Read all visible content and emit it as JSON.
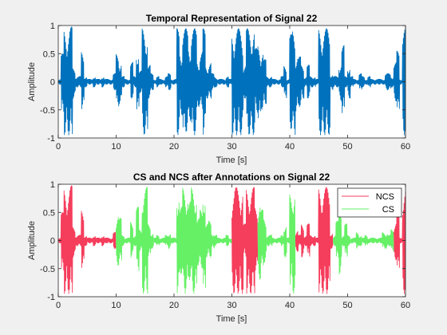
{
  "figure": {
    "background": "#f0f0f0"
  },
  "chart_data": [
    {
      "type": "line",
      "title": "Temporal Representation of Signal 22",
      "xlabel": "Time [s]",
      "ylabel": "Amplitude",
      "xlim": [
        0,
        60
      ],
      "ylim": [
        -1,
        1
      ],
      "xticks": [
        0,
        10,
        20,
        30,
        40,
        50,
        60
      ],
      "xtick_labels": [
        "0",
        "10",
        "20",
        "30",
        "40",
        "50",
        "60"
      ],
      "yticks": [
        -1,
        -0.5,
        0,
        0.5,
        1
      ],
      "ytick_labels": [
        "-1",
        "-0.5",
        "0",
        "0.5",
        "1"
      ],
      "grid": false,
      "series": [
        {
          "color": "#0072bd",
          "segments": [
            {
              "x": [
                0.0,
                0.5,
                1.0,
                1.5,
                2.0,
                2.5,
                3.0,
                3.5,
                4.0,
                4.5,
                5.0,
                5.5,
                6.0,
                6.5,
                7.0,
                7.5,
                8.0,
                8.5,
                9.0,
                9.5,
                10.0,
                10.5,
                11.0,
                11.5,
                12.0,
                12.5,
                13.0,
                13.5,
                14.0,
                14.5,
                15.0,
                15.5,
                16.0,
                16.5,
                17.0,
                17.5,
                18.0,
                18.5,
                19.0,
                19.5,
                20.0,
                20.5,
                21.0,
                21.5,
                22.0,
                22.5,
                23.0,
                23.5,
                24.0,
                24.5,
                25.0,
                25.5,
                26.0,
                26.5,
                27.0,
                27.5,
                28.0,
                28.5,
                29.0,
                29.5,
                30.0,
                30.5,
                31.0,
                31.5,
                32.0,
                32.5,
                33.0,
                33.5,
                34.0,
                34.5,
                35.0,
                35.5,
                36.0,
                36.5,
                37.0,
                37.5,
                38.0,
                38.5,
                39.0,
                39.5,
                40.0,
                40.5,
                41.0,
                41.5,
                42.0,
                42.5,
                43.0,
                43.5,
                44.0,
                44.5,
                45.0,
                45.5,
                46.0,
                46.5,
                47.0,
                47.5,
                48.0,
                48.5,
                49.0,
                49.5,
                50.0,
                50.5,
                51.0,
                51.5,
                52.0,
                52.5,
                53.0,
                53.5,
                54.0,
                54.5,
                55.0,
                55.5,
                56.0,
                56.5,
                57.0,
                57.5,
                58.0,
                58.5,
                59.0,
                59.5,
                60.0
              ],
              "max": [
                0.05,
                0.5,
                0.95,
                0.95,
                0.98,
                0.25,
                0.1,
                0.1,
                0.55,
                0.1,
                0.05,
                0.05,
                0.1,
                0.05,
                0.05,
                0.1,
                0.05,
                0.05,
                0.05,
                0.15,
                0.5,
                0.4,
                0.1,
                0.05,
                0.05,
                0.35,
                0.1,
                0.6,
                0.2,
                0.95,
                0.95,
                0.3,
                0.15,
                0.05,
                0.1,
                0.05,
                0.05,
                0.1,
                0.15,
                0.05,
                0.05,
                0.95,
                0.6,
                0.95,
                0.95,
                0.7,
                0.95,
                0.95,
                0.4,
                0.55,
                0.95,
                0.3,
                0.35,
                0.15,
                0.1,
                0.05,
                0.05,
                0.05,
                0.1,
                0.05,
                0.9,
                0.95,
                0.95,
                0.95,
                0.3,
                0.95,
                0.95,
                0.95,
                0.6,
                0.7,
                0.55,
                0.4,
                0.1,
                0.1,
                0.05,
                0.05,
                0.05,
                0.1,
                0.3,
                0.05,
                0.85,
                0.95,
                0.5,
                0.45,
                0.3,
                0.1,
                0.3,
                0.1,
                0.1,
                0.05,
                0.95,
                0.95,
                0.95,
                0.95,
                0.15,
                0.1,
                0.1,
                0.35,
                0.65,
                0.1,
                0.3,
                0.1,
                0.05,
                0.05,
                0.15,
                0.1,
                0.05,
                0.1,
                0.05,
                0.05,
                0.05,
                0.05,
                0.05,
                0.15,
                0.15,
                0.1,
                0.35,
                0.55,
                0.05,
                0.95,
                0.95
              ],
              "min": [
                -0.05,
                -0.6,
                -0.95,
                -0.95,
                -0.98,
                -0.3,
                -0.1,
                -0.1,
                -0.5,
                -0.1,
                -0.05,
                -0.05,
                -0.1,
                -0.05,
                -0.05,
                -0.1,
                -0.05,
                -0.05,
                -0.05,
                -0.15,
                -0.45,
                -0.4,
                -0.1,
                -0.05,
                -0.05,
                -0.3,
                -0.1,
                -0.55,
                -0.2,
                -0.95,
                -0.95,
                -0.3,
                -0.15,
                -0.05,
                -0.1,
                -0.05,
                -0.05,
                -0.1,
                -0.15,
                -0.05,
                -0.05,
                -0.95,
                -0.6,
                -0.95,
                -0.9,
                -0.7,
                -0.95,
                -0.95,
                -0.45,
                -0.5,
                -0.95,
                -0.3,
                -0.3,
                -0.15,
                -0.1,
                -0.05,
                -0.05,
                -0.05,
                -0.1,
                -0.05,
                -0.95,
                -0.95,
                -0.95,
                -0.95,
                -0.3,
                -0.95,
                -0.95,
                -0.95,
                -0.55,
                -0.7,
                -0.5,
                -0.4,
                -0.1,
                -0.1,
                -0.05,
                -0.05,
                -0.05,
                -0.1,
                -0.3,
                -0.05,
                -0.85,
                -0.95,
                -0.55,
                -0.45,
                -0.3,
                -0.1,
                -0.3,
                -0.1,
                -0.1,
                -0.05,
                -0.95,
                -0.95,
                -0.95,
                -0.95,
                -0.15,
                -0.1,
                -0.1,
                -0.35,
                -0.6,
                -0.1,
                -0.3,
                -0.1,
                -0.05,
                -0.05,
                -0.15,
                -0.1,
                -0.05,
                -0.1,
                -0.05,
                -0.05,
                -0.05,
                -0.05,
                -0.05,
                -0.15,
                -0.15,
                -0.1,
                -0.35,
                -0.55,
                -0.05,
                -0.95,
                -0.95
              ]
            }
          ]
        }
      ]
    },
    {
      "type": "line",
      "title": "CS and NCS after Annotations on Signal 22",
      "xlabel": "Time [s]",
      "ylabel": "Amplitude",
      "xlim": [
        0,
        60
      ],
      "ylim": [
        -1,
        1
      ],
      "xticks": [
        0,
        10,
        20,
        30,
        40,
        50,
        60
      ],
      "xtick_labels": [
        "0",
        "10",
        "20",
        "30",
        "40",
        "50",
        "60"
      ],
      "yticks": [
        -1,
        -0.5,
        0,
        0.5,
        1
      ],
      "ytick_labels": [
        "-1",
        "-0.5",
        "0",
        "0.5",
        "1"
      ],
      "grid": false,
      "legend": "top-right",
      "series": [
        {
          "name": "NCS",
          "color": "#f53d5c",
          "segments": [
            {
              "x": [
                0.0,
                0.5,
                1.0,
                1.5,
                2.0,
                2.5,
                3.0,
                3.5,
                4.0,
                4.5,
                5.0,
                5.5,
                6.0,
                6.5,
                7.0,
                7.5,
                8.0,
                8.5,
                9.0,
                9.5
              ],
              "max": [
                0.05,
                0.5,
                0.95,
                0.95,
                0.98,
                0.25,
                0.1,
                0.1,
                0.55,
                0.1,
                0.05,
                0.05,
                0.1,
                0.05,
                0.05,
                0.1,
                0.05,
                0.05,
                0.05,
                0.15
              ],
              "min": [
                -0.05,
                -0.6,
                -0.95,
                -0.95,
                -0.98,
                -0.3,
                -0.1,
                -0.1,
                -0.5,
                -0.1,
                -0.05,
                -0.05,
                -0.1,
                -0.05,
                -0.05,
                -0.1,
                -0.05,
                -0.05,
                -0.05,
                -0.15
              ]
            },
            {
              "x": [
                30.0,
                30.5,
                31.0,
                31.5,
                32.0,
                32.5,
                33.0,
                33.5,
                34.0
              ],
              "max": [
                0.9,
                0.95,
                0.95,
                0.95,
                0.3,
                0.95,
                0.95,
                0.95,
                0.6
              ],
              "min": [
                -0.95,
                -0.95,
                -0.95,
                -0.95,
                -0.3,
                -0.95,
                -0.95,
                -0.95,
                -0.55
              ]
            },
            {
              "x": [
                41.0,
                41.5,
                42.0,
                42.5,
                43.0,
                43.5,
                44.0,
                44.5,
                45.0,
                45.5,
                46.0,
                46.5,
                47.0
              ],
              "max": [
                0.2,
                0.1,
                0.3,
                0.1,
                0.3,
                0.1,
                0.1,
                0.05,
                0.95,
                0.95,
                0.95,
                0.95,
                0.15
              ],
              "min": [
                -0.2,
                -0.1,
                -0.3,
                -0.1,
                -0.3,
                -0.1,
                -0.1,
                -0.05,
                -0.95,
                -0.95,
                -0.95,
                -0.95,
                -0.15
              ]
            },
            {
              "x": [
                58.0,
                58.5,
                59.0,
                59.5,
                60.0
              ],
              "max": [
                0.35,
                0.55,
                0.05,
                0.95,
                0.95
              ],
              "min": [
                -0.35,
                -0.55,
                -0.05,
                -0.95,
                -0.95
              ]
            }
          ]
        },
        {
          "name": "CS",
          "color": "#66f066",
          "segments": [
            {
              "x": [
                10.0,
                10.5,
                11.0,
                11.5,
                12.0,
                12.5,
                13.0,
                13.5,
                14.0,
                14.5,
                15.0,
                15.5,
                16.0,
                16.5,
                17.0,
                17.5,
                18.0,
                18.5,
                19.0,
                19.5,
                20.0,
                20.5,
                21.0,
                21.5,
                22.0,
                22.5,
                23.0,
                23.5,
                24.0,
                24.5,
                25.0,
                25.5,
                26.0,
                26.5,
                27.0,
                27.5,
                28.0,
                28.5,
                29.0,
                29.5
              ],
              "max": [
                0.5,
                0.4,
                0.1,
                0.05,
                0.05,
                0.35,
                0.1,
                0.6,
                0.2,
                0.95,
                0.95,
                0.3,
                0.15,
                0.05,
                0.1,
                0.05,
                0.05,
                0.1,
                0.15,
                0.05,
                0.05,
                0.95,
                0.6,
                0.95,
                0.95,
                0.7,
                0.95,
                0.95,
                0.4,
                0.55,
                0.95,
                0.3,
                0.35,
                0.15,
                0.1,
                0.05,
                0.05,
                0.05,
                0.1,
                0.05
              ],
              "min": [
                -0.45,
                -0.4,
                -0.1,
                -0.05,
                -0.05,
                -0.3,
                -0.1,
                -0.55,
                -0.2,
                -0.95,
                -0.95,
                -0.3,
                -0.15,
                -0.05,
                -0.1,
                -0.05,
                -0.05,
                -0.1,
                -0.15,
                -0.05,
                -0.05,
                -0.95,
                -0.6,
                -0.95,
                -0.9,
                -0.7,
                -0.95,
                -0.95,
                -0.45,
                -0.5,
                -0.95,
                -0.3,
                -0.3,
                -0.15,
                -0.1,
                -0.05,
                -0.05,
                -0.05,
                -0.1,
                -0.05
              ]
            },
            {
              "x": [
                34.5,
                35.0,
                35.5,
                36.0,
                36.5,
                37.0,
                37.5,
                38.0,
                38.5,
                39.0,
                39.5,
                40.0,
                40.5
              ],
              "max": [
                0.7,
                0.55,
                0.4,
                0.1,
                0.1,
                0.05,
                0.05,
                0.05,
                0.1,
                0.3,
                0.05,
                0.85,
                0.95
              ],
              "min": [
                -0.7,
                -0.5,
                -0.4,
                -0.1,
                -0.1,
                -0.05,
                -0.05,
                -0.05,
                -0.1,
                -0.3,
                -0.05,
                -0.85,
                -0.95
              ]
            },
            {
              "x": [
                47.5,
                48.0,
                48.5,
                49.0,
                49.5,
                50.0,
                50.5,
                51.0,
                51.5,
                52.0,
                52.5,
                53.0,
                53.5,
                54.0,
                54.5,
                55.0,
                55.5,
                56.0,
                56.5,
                57.0,
                57.5
              ],
              "max": [
                0.1,
                0.35,
                0.65,
                0.1,
                0.3,
                0.1,
                0.05,
                0.05,
                0.15,
                0.1,
                0.05,
                0.1,
                0.05,
                0.05,
                0.05,
                0.05,
                0.05,
                0.15,
                0.15,
                0.1,
                0.2
              ],
              "min": [
                -0.1,
                -0.35,
                -0.6,
                -0.1,
                -0.3,
                -0.1,
                -0.05,
                -0.05,
                -0.15,
                -0.1,
                -0.05,
                -0.1,
                -0.05,
                -0.05,
                -0.05,
                -0.05,
                -0.05,
                -0.15,
                -0.15,
                -0.1,
                -0.2
              ]
            }
          ]
        }
      ]
    }
  ]
}
